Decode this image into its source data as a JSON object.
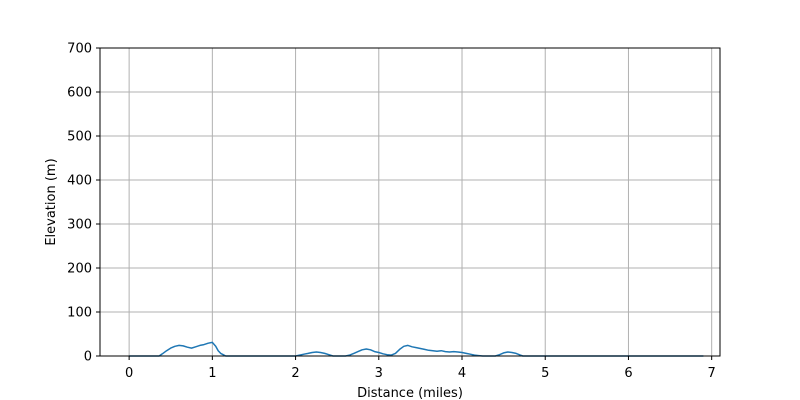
{
  "chart_data": {
    "type": "line",
    "title": "",
    "xlabel": "Distance (miles)",
    "ylabel": "Elevation (m)",
    "xlim": [
      -0.35,
      7.1
    ],
    "ylim": [
      0,
      700
    ],
    "xticks": [
      0,
      1,
      2,
      3,
      4,
      5,
      6,
      7
    ],
    "yticks": [
      0,
      100,
      200,
      300,
      400,
      500,
      600,
      700
    ],
    "xtick_labels": [
      "0",
      "1",
      "2",
      "3",
      "4",
      "5",
      "6",
      "7"
    ],
    "ytick_labels": [
      "0",
      "100",
      "200",
      "300",
      "400",
      "500",
      "600",
      "700"
    ],
    "grid": true,
    "line_color": "#1f77b4",
    "grid_color": "#b0b0b0",
    "series": [
      {
        "x": [
          0.0,
          0.3,
          0.36,
          0.4,
          0.45,
          0.5,
          0.55,
          0.6,
          0.65,
          0.7,
          0.75,
          0.8,
          0.85,
          0.9,
          0.95,
          1.0,
          1.04,
          1.07,
          1.1,
          1.13,
          1.16,
          1.2,
          1.5,
          1.9,
          2.0,
          2.05,
          2.1,
          2.15,
          2.2,
          2.25,
          2.3,
          2.35,
          2.4,
          2.45,
          2.5,
          2.55,
          2.6,
          2.65,
          2.7,
          2.75,
          2.8,
          2.85,
          2.9,
          2.95,
          3.0,
          3.05,
          3.1,
          3.15,
          3.2,
          3.25,
          3.3,
          3.35,
          3.4,
          3.45,
          3.5,
          3.55,
          3.6,
          3.65,
          3.7,
          3.75,
          3.8,
          3.85,
          3.9,
          3.95,
          4.0,
          4.05,
          4.1,
          4.15,
          4.2,
          4.25,
          4.3,
          4.35,
          4.4,
          4.45,
          4.5,
          4.55,
          4.6,
          4.65,
          4.7,
          4.73,
          5.0,
          6.0,
          6.9
        ],
        "y": [
          0,
          0,
          0,
          5,
          12,
          18,
          22,
          24,
          23,
          20,
          18,
          21,
          24,
          26,
          29,
          31,
          22,
          12,
          6,
          3,
          0,
          0,
          0,
          0,
          0,
          2,
          4,
          6,
          8,
          9,
          8,
          6,
          3,
          0,
          0,
          0,
          0,
          2,
          6,
          10,
          14,
          16,
          14,
          10,
          8,
          5,
          3,
          2,
          6,
          15,
          22,
          24,
          21,
          19,
          17,
          15,
          13,
          12,
          11,
          12,
          10,
          9,
          10,
          9,
          8,
          6,
          4,
          2,
          1,
          0,
          0,
          0,
          0,
          3,
          7,
          9,
          8,
          6,
          2,
          0,
          0,
          0,
          0
        ]
      }
    ]
  }
}
